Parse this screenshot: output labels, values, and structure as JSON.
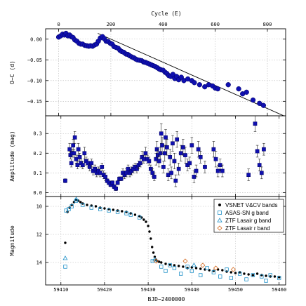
{
  "figure": {
    "top_axis_label": "Cycle (E)",
    "bottom_axis_label": "BJD−2400000"
  },
  "colors": {
    "blue_fill": "#1010b0",
    "blue_edge": "#000060",
    "cyan": "#1e90c8",
    "orange": "#d2691e",
    "grid": "#b8b8b8"
  },
  "chart_data": [
    {
      "type": "scatter",
      "panel": "O-C",
      "ylabel": "O−C (d)",
      "top_xlabel": "Cycle (E)",
      "xlim": [
        -50,
        870
      ],
      "ylim": [
        -0.185,
        0.025
      ],
      "x_ticks": [
        0,
        200,
        400,
        600,
        800
      ],
      "y_ticks": [
        0.0,
        -0.05,
        -0.1,
        -0.15
      ],
      "y_tick_labels": [
        "0.00",
        "−0.05",
        "−0.10",
        "−0.15"
      ],
      "grid": true,
      "series": [
        {
          "marker": "filled-circle",
          "x": [
            0,
            8,
            15,
            22,
            28,
            35,
            42,
            48,
            55,
            62,
            70,
            78,
            85,
            92,
            100,
            108,
            115,
            122,
            130,
            138,
            145,
            152,
            160,
            168,
            175,
            182,
            190,
            198,
            205,
            212,
            220,
            228,
            235,
            242,
            250,
            258,
            265,
            272,
            280,
            288,
            295,
            302,
            310,
            318,
            325,
            332,
            340,
            348,
            355,
            362,
            370,
            378,
            385,
            392,
            400,
            408,
            415,
            422,
            430,
            438,
            445,
            452,
            460,
            470,
            480,
            495,
            510,
            520,
            540,
            560,
            575,
            590,
            600,
            610,
            650,
            690,
            705,
            720,
            745,
            770,
            785
          ],
          "y": [
            0.005,
            0.008,
            0.012,
            0.01,
            0.014,
            0.008,
            0.01,
            0.006,
            0.004,
            -0.002,
            -0.005,
            -0.01,
            -0.012,
            -0.012,
            -0.015,
            -0.016,
            -0.017,
            -0.016,
            -0.017,
            -0.014,
            -0.012,
            -0.005,
            0.003,
            0.006,
            0.001,
            -0.005,
            -0.006,
            -0.01,
            -0.012,
            -0.018,
            -0.02,
            -0.022,
            -0.027,
            -0.03,
            -0.032,
            -0.036,
            -0.037,
            -0.04,
            -0.043,
            -0.045,
            -0.048,
            -0.05,
            -0.051,
            -0.052,
            -0.055,
            -0.056,
            -0.058,
            -0.06,
            -0.062,
            -0.064,
            -0.066,
            -0.069,
            -0.072,
            -0.074,
            -0.075,
            -0.08,
            -0.083,
            -0.088,
            -0.09,
            -0.085,
            -0.095,
            -0.09,
            -0.098,
            -0.092,
            -0.1,
            -0.096,
            -0.1,
            -0.105,
            -0.11,
            -0.115,
            -0.11,
            -0.113,
            -0.118,
            -0.12,
            -0.11,
            -0.12,
            -0.132,
            -0.128,
            -0.147,
            -0.155,
            -0.16
          ]
        }
      ],
      "fit_line": {
        "x": [
          150,
          870
        ],
        "y": [
          0.014,
          -0.187
        ]
      }
    },
    {
      "type": "scatter",
      "panel": "Amplitude",
      "ylabel": "Amplitude (mag)",
      "xlim": [
        59406.5,
        59461.5
      ],
      "ylim": [
        -0.02,
        0.39
      ],
      "y_ticks": [
        0.0,
        0.1,
        0.2,
        0.3
      ],
      "y_tick_labels": [
        "0.0",
        "0.1",
        "0.2",
        "0.3"
      ],
      "grid": true,
      "series": [
        {
          "marker": "filled-square-errorbar",
          "x": [
            59411,
            59412,
            59412.2,
            59412.4,
            59412.6,
            59412.8,
            59413,
            59413.2,
            59413.5,
            59413.8,
            59414,
            59414.3,
            59414.6,
            59415,
            59415.4,
            59415.8,
            59416.2,
            59416.6,
            59417,
            59417.4,
            59417.8,
            59418.2,
            59418.6,
            59419,
            59419.4,
            59419.8,
            59420.2,
            59420.6,
            59421,
            59421.4,
            59421.8,
            59422.2,
            59422.6,
            59423,
            59423.4,
            59423.8,
            59424.2,
            59424.6,
            59425,
            59425.4,
            59425.8,
            59426.2,
            59426.6,
            59427,
            59427.4,
            59427.8,
            59428.2,
            59428.6,
            59429,
            59429.4,
            59429.8,
            59430.2,
            59430.6,
            59431,
            59431.4,
            59431.8,
            59432,
            59432.2,
            59432.5,
            59432.8,
            59433,
            59433.2,
            59433.5,
            59433.8,
            59434,
            59434.3,
            59434.6,
            59435,
            59435.3,
            59435.6,
            59436,
            59436.3,
            59436.6,
            59437,
            59437.5,
            59438,
            59438.5,
            59439,
            59439.5,
            59440,
            59440.5,
            59441,
            59441.5,
            59442,
            59443,
            59445,
            59445.5,
            59446,
            59446.5,
            59447,
            59453,
            59454.5,
            59455,
            59455.5,
            59456,
            59456.5
          ],
          "y": [
            0.06,
            0.22,
            0.19,
            0.15,
            0.2,
            0.24,
            0.2,
            0.28,
            0.17,
            0.14,
            0.22,
            0.18,
            0.15,
            0.14,
            0.2,
            0.16,
            0.15,
            0.13,
            0.15,
            0.11,
            0.12,
            0.1,
            0.11,
            0.1,
            0.13,
            0.09,
            0.08,
            0.06,
            0.05,
            0.04,
            0.05,
            0.03,
            0.02,
            0.05,
            0.07,
            0.07,
            0.1,
            0.09,
            0.1,
            0.12,
            0.1,
            0.11,
            0.12,
            0.13,
            0.12,
            0.14,
            0.15,
            0.18,
            0.17,
            0.2,
            0.17,
            0.16,
            0.12,
            0.1,
            0.08,
            0.17,
            0.22,
            0.19,
            0.16,
            0.2,
            0.3,
            0.24,
            0.13,
            0.2,
            0.28,
            0.23,
            0.09,
            0.18,
            0.1,
            0.25,
            0.16,
            0.06,
            0.27,
            0.12,
            0.2,
            0.23,
            0.19,
            0.14,
            0.15,
            0.24,
            0.08,
            0.11,
            0.22,
            0.18,
            0.13,
            0.22,
            0.17,
            0.11,
            0.14,
            0.11,
            0.09,
            0.35,
            0.21,
            0.14,
            0.1,
            0.22
          ],
          "yerr": [
            0.01,
            0.03,
            0.02,
            0.02,
            0.02,
            0.03,
            0.02,
            0.03,
            0.02,
            0.02,
            0.03,
            0.02,
            0.02,
            0.02,
            0.03,
            0.02,
            0.02,
            0.02,
            0.02,
            0.02,
            0.02,
            0.02,
            0.02,
            0.02,
            0.02,
            0.02,
            0.02,
            0.01,
            0.01,
            0.01,
            0.01,
            0.01,
            0.01,
            0.01,
            0.01,
            0.01,
            0.02,
            0.02,
            0.02,
            0.02,
            0.02,
            0.02,
            0.02,
            0.02,
            0.02,
            0.02,
            0.02,
            0.03,
            0.02,
            0.03,
            0.02,
            0.02,
            0.02,
            0.02,
            0.02,
            0.03,
            0.04,
            0.03,
            0.03,
            0.03,
            0.05,
            0.04,
            0.03,
            0.04,
            0.04,
            0.04,
            0.03,
            0.04,
            0.03,
            0.04,
            0.04,
            0.03,
            0.04,
            0.03,
            0.04,
            0.04,
            0.04,
            0.03,
            0.03,
            0.04,
            0.03,
            0.03,
            0.04,
            0.03,
            0.03,
            0.04,
            0.04,
            0.03,
            0.03,
            0.03,
            0.03,
            0.04,
            0.03,
            0.03,
            0.03,
            0.03
          ]
        }
      ]
    },
    {
      "type": "scatter",
      "panel": "Magnitude",
      "ylabel": "Magnitude",
      "xlabel": "BJD−2400000",
      "xlim": [
        59406.5,
        59461.5
      ],
      "ylim": [
        15.6,
        9.3
      ],
      "x_ticks": [
        59410,
        59420,
        59430,
        59440,
        59450,
        59460
      ],
      "y_ticks": [
        10,
        12,
        14
      ],
      "y_tick_labels": [
        "10",
        "12",
        "14"
      ],
      "grid": true,
      "legend_position": "top-right",
      "series": [
        {
          "name": "VSNET V&CV bands",
          "marker": "filled-circle",
          "x": [
            59411,
            59411.5,
            59412,
            59412.5,
            59413,
            59413.5,
            59414,
            59414.5,
            59415,
            59416,
            59417,
            59418,
            59419,
            59420,
            59421,
            59422,
            59423,
            59424,
            59425,
            59426,
            59427,
            59428,
            59428.5,
            59429,
            59429.5,
            59430,
            59430.3,
            59430.6,
            59430.9,
            59431.2,
            59431.5,
            59431.8,
            59432.1,
            59432.5,
            59433,
            59434,
            59435,
            59436,
            59437,
            59438,
            59439,
            59440,
            59441,
            59442,
            59443,
            59444,
            59445,
            59446,
            59447,
            59448,
            59449,
            59450,
            59451,
            59452,
            59453,
            59454,
            59455,
            59456,
            59457,
            59458,
            59459,
            59460
          ],
          "y": [
            12.6,
            10.4,
            10.1,
            9.9,
            9.7,
            9.55,
            9.6,
            9.7,
            9.8,
            9.9,
            9.95,
            10.0,
            10.1,
            10.15,
            10.2,
            10.25,
            10.3,
            10.35,
            10.4,
            10.5,
            10.6,
            10.7,
            10.8,
            10.95,
            11.1,
            11.4,
            11.8,
            12.3,
            12.9,
            13.3,
            13.6,
            13.8,
            13.9,
            13.95,
            14.0,
            14.1,
            14.15,
            14.2,
            14.25,
            14.3,
            14.4,
            14.35,
            14.4,
            14.45,
            14.5,
            14.55,
            14.6,
            14.5,
            14.55,
            14.65,
            14.7,
            14.75,
            14.7,
            14.8,
            14.85,
            14.9,
            14.8,
            14.9,
            14.95,
            15.0,
            15.0,
            15.05
          ]
        },
        {
          "name": "ASAS-SN g band",
          "marker": "open-square",
          "x": [
            59411,
            59411.2,
            59411.8,
            59412.5,
            59413.5,
            59415,
            59417,
            59419,
            59421,
            59423,
            59425,
            59426,
            59428,
            59431,
            59433,
            59434,
            59435,
            59436,
            59437.5,
            59439,
            59440,
            59442,
            59443.5,
            59445,
            59446.5,
            59448,
            59449,
            59451,
            59452.5,
            59454,
            59456,
            59457,
            59458,
            59460
          ],
          "y": [
            14.3,
            10.3,
            10.2,
            10.0,
            9.6,
            9.9,
            10.1,
            10.2,
            10.3,
            10.4,
            10.5,
            10.6,
            10.8,
            13.9,
            14.3,
            14.6,
            14.2,
            14.4,
            14.8,
            14.3,
            14.6,
            14.9,
            14.4,
            14.7,
            15.0,
            14.5,
            15.1,
            14.8,
            15.2,
            14.9,
            15.0,
            15.3,
            14.9,
            15.1
          ]
        },
        {
          "name": "ZTF Lasair g band",
          "marker": "open-triangle",
          "x": [
            59411,
            59413.5,
            59431.5,
            59440.5
          ],
          "y": [
            13.7,
            9.5,
            13.8,
            14.2
          ]
        },
        {
          "name": "ZTF Lasair r band",
          "marker": "open-diamond",
          "x": [
            59431.8,
            59438.5,
            59442.5,
            59445.5,
            59449.5
          ],
          "y": [
            13.9,
            13.9,
            14.2,
            14.4,
            14.5
          ]
        }
      ]
    }
  ]
}
